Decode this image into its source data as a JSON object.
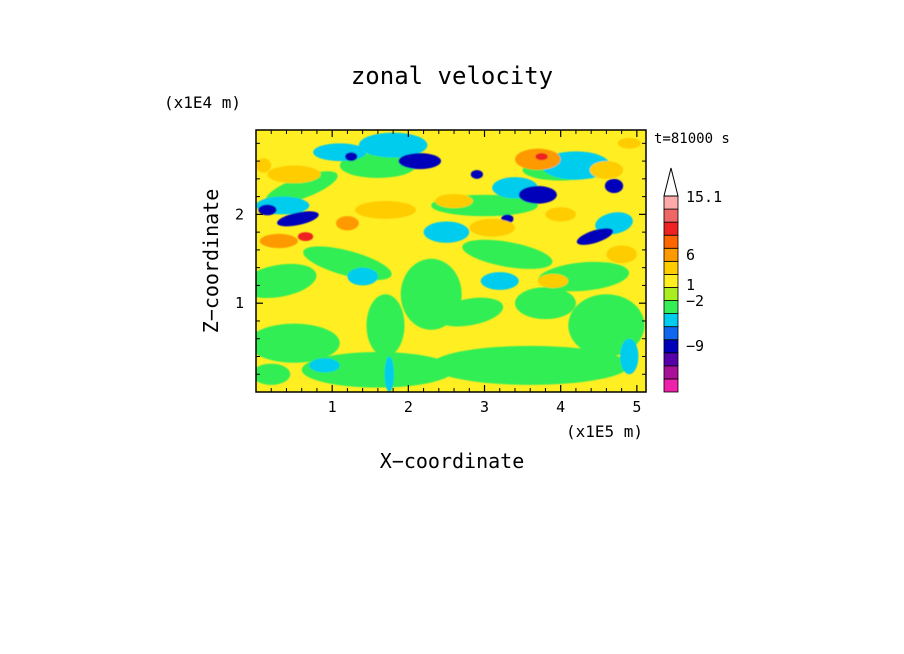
{
  "chart_data": {
    "type": "heatmap",
    "title": "zonal velocity",
    "time_label": "t=81000 s",
    "xlabel": "X−coordinate",
    "ylabel": "Z−coordinate",
    "x_scale_label": "(x1E5 m)",
    "y_scale_label": "(x1E4 m)",
    "xlim": [
      0,
      5.12
    ],
    "ylim": [
      0,
      2.95
    ],
    "x_ticks": [
      "1",
      "2",
      "3",
      "4",
      "5"
    ],
    "y_ticks": [
      "1",
      "2"
    ],
    "colorbar": {
      "tick_labels": [
        "15.1",
        "6",
        "1",
        "−2",
        "−9"
      ],
      "arrow": "top",
      "bands_bottom_to_top": [
        "#ee22aa",
        "#aa1199",
        "#5500aa",
        "#0000bb",
        "#1166ee",
        "#00ccee",
        "#33ee55",
        "#aaee22",
        "#ffee22",
        "#ffcc00",
        "#ff9900",
        "#ff6600",
        "#ee2222",
        "#ee6666",
        "#ffaaaa"
      ]
    },
    "field_colors": {
      "strong_negative": "#0000bb",
      "weak_negative": "#00ccee",
      "near_zero": "#33ee55",
      "slightly_positive": "#ffee22",
      "positive": "#ffcc00",
      "strong_positive": "#ff9900",
      "very_strong_positive": "#ee2222"
    }
  }
}
